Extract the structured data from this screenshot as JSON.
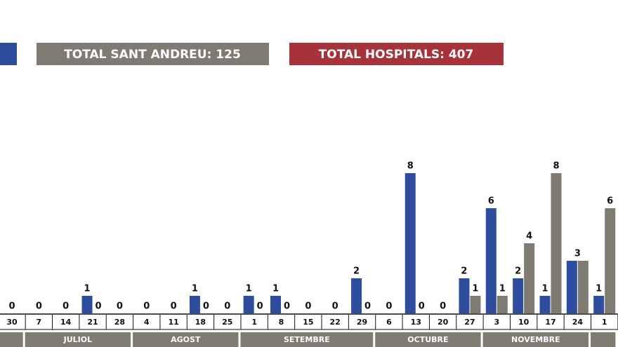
{
  "chart_data": {
    "type": "bar",
    "categories": [
      "30",
      "7",
      "14",
      "21",
      "28",
      "4",
      "11",
      "18",
      "25",
      "1",
      "8",
      "15",
      "22",
      "29",
      "6",
      "13",
      "20",
      "27",
      "3",
      "10",
      "17",
      "24",
      "1"
    ],
    "months": [
      null,
      "JULIOL",
      "AGOST",
      "SETEMBRE",
      "OCTUBRE",
      "NOVEMBRE",
      null
    ],
    "series": [
      {
        "color": "#2f4d9e",
        "values": [
          0,
          0,
          0,
          1,
          0,
          0,
          0,
          1,
          0,
          1,
          1,
          0,
          0,
          2,
          0,
          8,
          0,
          2,
          6,
          2,
          1,
          3,
          1
        ]
      },
      {
        "name": "TOTAL SANT ANDREU: 125",
        "color": "#7f7a72",
        "values": [
          0,
          0,
          0,
          0,
          0,
          0,
          0,
          0,
          0,
          0,
          0,
          0,
          0,
          0,
          0,
          0,
          0,
          1,
          1,
          4,
          8,
          3,
          6
        ]
      }
    ],
    "extra_legend": {
      "label": "TOTAL HOSPITALS: 407",
      "color": "#a8323a"
    },
    "ylim": [
      0,
      16
    ]
  }
}
